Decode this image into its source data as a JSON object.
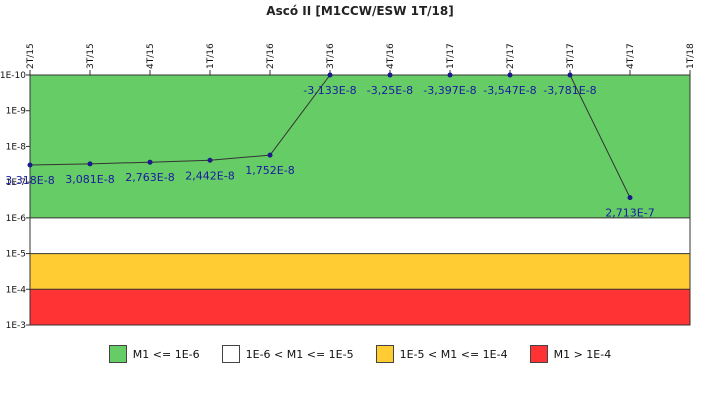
{
  "chart_data": {
    "type": "line",
    "title": "Ascó II [M1CCW/ESW 1T/18]",
    "x_categories": [
      "2T/15",
      "3T/15",
      "4T/15",
      "1T/16",
      "2T/16",
      "3T/16",
      "4T/16",
      "1T/17",
      "2T/17",
      "3T/17",
      "4T/17",
      "1T/18"
    ],
    "y_scale": "log",
    "y_direction": "inverted (1E-10 at top, 1E-3 at bottom)",
    "y_ticks": [
      "1E-10",
      "1E-9",
      "1E-8",
      "1E-7",
      "1E-6",
      "1E-5",
      "1E-4",
      "1E-3"
    ],
    "series": [
      {
        "color": "#1a1a8a",
        "points": [
          {
            "x": "2T/15",
            "y": 3.318e-08,
            "label": "3,318E-8"
          },
          {
            "x": "3T/15",
            "y": 3.081e-08,
            "label": "3,081E-8"
          },
          {
            "x": "4T/15",
            "y": 2.763e-08,
            "label": "2,763E-8"
          },
          {
            "x": "1T/16",
            "y": 2.442e-08,
            "label": "2,442E-8"
          },
          {
            "x": "2T/16",
            "y": 1.752e-08,
            "label": "1,752E-8"
          },
          {
            "x": "3T/16",
            "y": -3.133e-08,
            "label": "-3,133E-8"
          },
          {
            "x": "4T/16",
            "y": -3.25e-08,
            "label": "-3,25E-8"
          },
          {
            "x": "1T/17",
            "y": -3.397e-08,
            "label": "-3,397E-8"
          },
          {
            "x": "2T/17",
            "y": -3.547e-08,
            "label": "-3,547E-8"
          },
          {
            "x": "3T/17",
            "y": -3.781e-08,
            "label": "-3,781E-8"
          },
          {
            "x": "4T/17",
            "y": 2.713e-07,
            "label": "2,713E-7"
          }
        ]
      }
    ],
    "bands": [
      {
        "from": 1e-10,
        "to": 1e-06,
        "color": "#66cc66",
        "legend": "M1 <= 1E-6"
      },
      {
        "from": 1e-06,
        "to": 1e-05,
        "color": "#ffffff",
        "legend": "1E-6 < M1 <= 1E-5"
      },
      {
        "from": 1e-05,
        "to": 0.0001,
        "color": "#ffcc33",
        "legend": "1E-5 < M1 <= 1E-4"
      },
      {
        "from": 0.0001,
        "to": 0.001,
        "color": "#ff3333",
        "legend": "M1 > 1E-4"
      }
    ],
    "legend_position": "bottom"
  }
}
